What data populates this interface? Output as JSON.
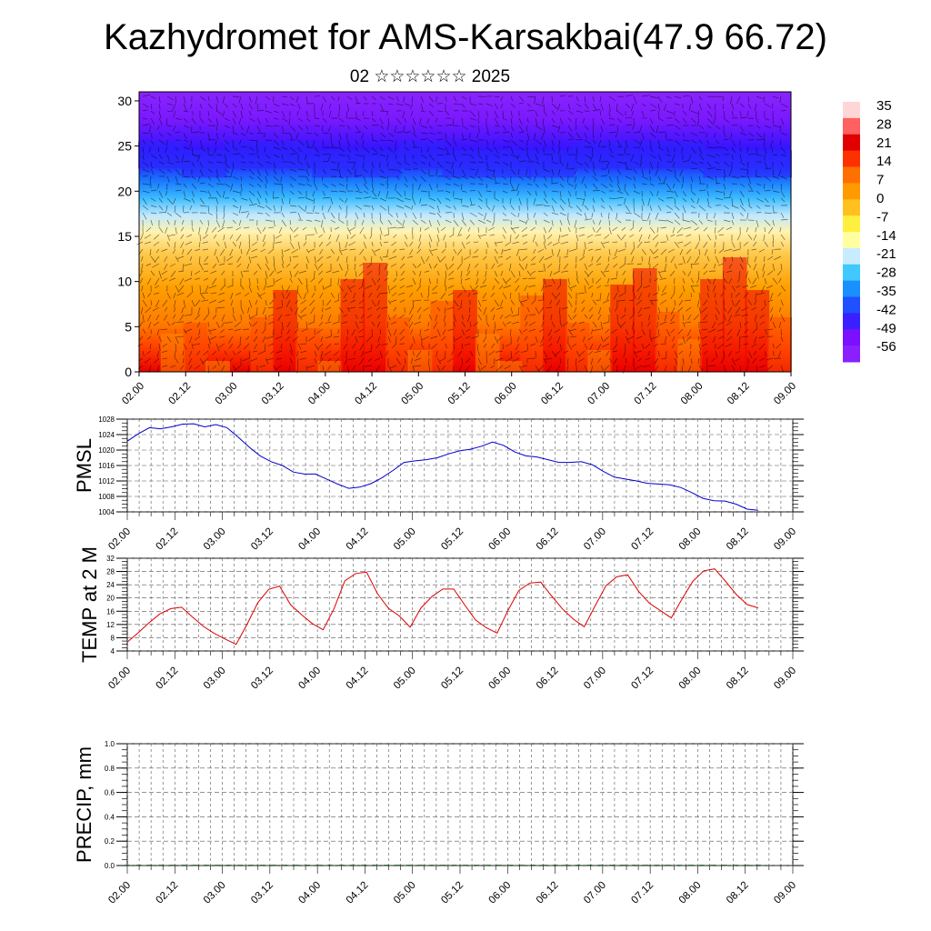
{
  "header": {
    "title": "Kazhydromet for AMS-Karsakbai(47.9 66.72)",
    "subtitle": "02 ☆☆☆☆☆☆ 2025"
  },
  "colors": {
    "pmsl_line": "#0000cc",
    "temp_line": "#dd0000",
    "grid": "#555555",
    "colorbar": [
      "#ffd6d6",
      "#ff6060",
      "#e00000",
      "#ff3000",
      "#ff7000",
      "#ff9a00",
      "#ffc020",
      "#fff040",
      "#ffffa0",
      "#c8ecff",
      "#40c8ff",
      "#1a90ff",
      "#2050ff",
      "#3a20ff",
      "#7a10ff",
      "#8a20ff"
    ]
  },
  "chart_data": [
    {
      "type": "heatmap",
      "title": "",
      "xlabel": "",
      "ylabel": "",
      "x_ticks": [
        "02.00",
        "02.12",
        "03.00",
        "03.12",
        "04.00",
        "04.12",
        "05.00",
        "05.12",
        "06.00",
        "06.12",
        "07.00",
        "07.12",
        "08.00",
        "08.12",
        "09.00"
      ],
      "y_ticks": [
        0,
        5,
        10,
        15,
        20,
        25,
        30
      ],
      "ylim": [
        0,
        31
      ],
      "colorbar_labels": [
        "35",
        "28",
        "21",
        "14",
        "7",
        "0",
        "-7",
        "-14",
        "-21",
        "-28",
        "-35",
        "-42",
        "-49",
        "-56"
      ],
      "overlay": "wind vectors",
      "surface_temp": [
        6,
        15,
        17,
        10,
        6,
        18,
        23,
        16,
        10,
        25,
        28,
        18,
        12,
        21,
        23,
        15,
        10,
        22,
        25,
        17,
        12,
        24,
        27,
        19,
        14,
        25,
        29,
        23,
        18
      ],
      "tropopause_level": [
        24,
        23,
        24,
        24,
        23,
        23,
        24,
        23,
        23,
        23,
        24,
        24,
        24,
        23,
        23
      ]
    },
    {
      "type": "line",
      "title": "",
      "ylabel": "PMSL",
      "x_ticks": [
        "02.00",
        "02.12",
        "03.00",
        "03.12",
        "04.00",
        "04.12",
        "05.00",
        "05.12",
        "06.00",
        "06.12",
        "07.00",
        "07.12",
        "08.00",
        "08.12",
        "09.00"
      ],
      "y_ticks": [
        "1004",
        "1008",
        "1012",
        "1016",
        "1020",
        "1024",
        "1028"
      ],
      "ylim": [
        1004,
        1028
      ],
      "series": [
        {
          "values": [
            1022.3,
            1024.2,
            1025.8,
            1025.5,
            1026,
            1026.7,
            1026.8,
            1026,
            1026.6,
            1025.8,
            1023.4,
            1020.8,
            1018.5,
            1017,
            1016,
            1014.3,
            1013.8,
            1013.8,
            1012.5,
            1011.2,
            1010.1,
            1010.4,
            1011.3,
            1012.8,
            1014.7,
            1016.8,
            1017.2,
            1017.5,
            1018,
            1019,
            1019.8,
            1020.2,
            1021,
            1022.1,
            1021.2,
            1019.5,
            1018.5,
            1018.2,
            1017.5,
            1016.8,
            1016.8,
            1017,
            1016.2,
            1014.5,
            1013,
            1012.5,
            1012,
            1011.4,
            1011.2,
            1011,
            1010.3,
            1009,
            1007.5,
            1006.9,
            1006.8,
            1006,
            1004.7,
            1004.4
          ]
        }
      ]
    },
    {
      "type": "line",
      "title": "",
      "ylabel": "TEMP at 2 M",
      "x_ticks": [
        "02.00",
        "02.12",
        "03.00",
        "03.12",
        "04.00",
        "04.12",
        "05.00",
        "05.12",
        "06.00",
        "06.12",
        "07.00",
        "07.12",
        "08.00",
        "08.12",
        "09.00"
      ],
      "y_ticks": [
        "4",
        "8",
        "12",
        "16",
        "20",
        "24",
        "28",
        "32"
      ],
      "ylim": [
        4,
        32
      ],
      "series": [
        {
          "values": [
            6.7,
            9.5,
            12.5,
            15.2,
            16.8,
            17.2,
            14.2,
            11.4,
            9.3,
            7.6,
            6,
            12,
            18.6,
            22.6,
            23.6,
            18,
            15,
            12.3,
            10.4,
            16.7,
            25.2,
            27.4,
            27.8,
            21.3,
            16.9,
            14.6,
            11.2,
            17,
            20.4,
            22.7,
            22.7,
            18,
            13.4,
            11,
            9.4,
            16.3,
            22.3,
            24.5,
            24.8,
            20.6,
            16.7,
            13.6,
            11.3,
            17.6,
            23.7,
            26.4,
            27,
            22,
            18.4,
            16.2,
            14,
            19.7,
            25.1,
            28.2,
            28.8,
            25,
            21,
            18,
            17
          ]
        }
      ]
    },
    {
      "type": "bar",
      "title": "",
      "ylabel": "PRECIP, mm",
      "x_ticks": [
        "02.00",
        "02.12",
        "03.00",
        "03.12",
        "04.00",
        "04.12",
        "05.00",
        "05.12",
        "06.00",
        "06.12",
        "07.00",
        "07.12",
        "08.00",
        "08.12",
        "09.00"
      ],
      "y_ticks": [
        "0.0",
        "0.2",
        "0.4",
        "0.6",
        "0.8",
        "1.0"
      ],
      "ylim": [
        0,
        1
      ],
      "series": [
        {
          "values": [
            0,
            0,
            0,
            0,
            0,
            0,
            0,
            0,
            0,
            0,
            0,
            0,
            0,
            0,
            0,
            0,
            0,
            0,
            0,
            0,
            0,
            0,
            0,
            0,
            0,
            0,
            0,
            0,
            0,
            0,
            0,
            0,
            0,
            0,
            0,
            0,
            0,
            0,
            0,
            0,
            0,
            0,
            0,
            0,
            0,
            0,
            0,
            0,
            0,
            0,
            0,
            0,
            0,
            0,
            0,
            0,
            0
          ]
        }
      ]
    }
  ]
}
